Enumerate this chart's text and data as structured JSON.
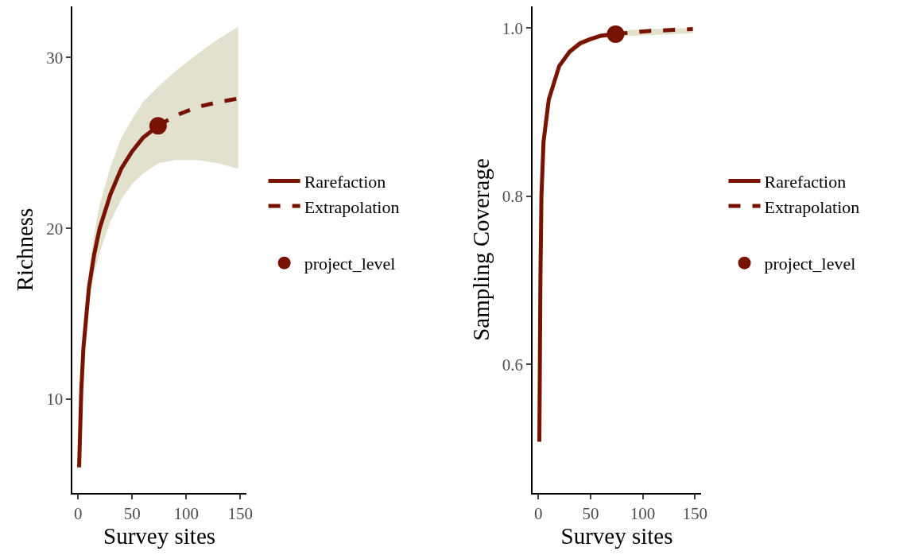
{
  "chart_data": [
    {
      "type": "line",
      "xlabel": "Survey sites",
      "ylabel": "Richness",
      "xlim": [
        -5,
        155.5
      ],
      "xticks": [
        0,
        50,
        100,
        150
      ],
      "ylim": [
        4.5,
        33
      ],
      "yticks": [
        10,
        20,
        30
      ],
      "legend": "right",
      "series": [
        {
          "name": "Rarefaction",
          "color": "#771300",
          "line_style": "solid",
          "x": [
            1,
            3,
            5,
            10,
            15,
            20,
            30,
            40,
            50,
            60,
            74
          ],
          "values": [
            6,
            10.5,
            13,
            16.5,
            18.5,
            20,
            22,
            23.5,
            24.5,
            25.3,
            26
          ],
          "lower": [
            6,
            10,
            12.5,
            15.5,
            17.3,
            18.6,
            20.4,
            21.7,
            22.6,
            23.2,
            23.8
          ],
          "upper": [
            6,
            11,
            13.5,
            17.5,
            19.7,
            21.4,
            23.6,
            25.3,
            26.4,
            27.4,
            28.3
          ]
        },
        {
          "name": "Extrapolation",
          "color": "#771300",
          "line_style": "dashed",
          "x": [
            74,
            90,
            110,
            130,
            148
          ],
          "values": [
            26,
            26.6,
            27.1,
            27.4,
            27.6
          ],
          "lower": [
            23.8,
            24,
            24,
            23.8,
            23.5
          ],
          "upper": [
            28.3,
            29.2,
            30.2,
            31.1,
            31.8
          ]
        },
        {
          "name": "project_level",
          "type": "scatter",
          "marker": "circle",
          "color": "#771300",
          "x": [
            74
          ],
          "values": [
            26
          ]
        }
      ]
    },
    {
      "type": "line",
      "xlabel": "Survey sites",
      "ylabel": "Sampling Coverage",
      "xlim": [
        -5.3,
        155.7
      ],
      "xticks": [
        0,
        50,
        100,
        150
      ],
      "ylim": [
        0.447,
        1.026
      ],
      "yticks": [
        0.6,
        0.8,
        {
          "value": 1,
          "label": "1.0"
        }
      ],
      "legend": "right",
      "series": [
        {
          "name": "Rarefaction",
          "color": "#771300",
          "line_style": "solid",
          "x": [
            1,
            2,
            3,
            5,
            10,
            20,
            30,
            40,
            50,
            60,
            74
          ],
          "values": [
            0.508,
            0.7,
            0.8,
            0.865,
            0.915,
            0.955,
            0.972,
            0.982,
            0.987,
            0.991,
            0.993
          ],
          "lower": [
            0.508,
            0.69,
            0.79,
            0.86,
            0.91,
            0.951,
            0.968,
            0.978,
            0.984,
            0.988,
            0.99
          ],
          "upper": [
            0.508,
            0.71,
            0.81,
            0.87,
            0.92,
            0.959,
            0.976,
            0.986,
            0.99,
            0.994,
            0.996
          ]
        },
        {
          "name": "Extrapolation",
          "color": "#771300",
          "line_style": "dashed",
          "x": [
            74,
            90,
            110,
            130,
            148
          ],
          "values": [
            0.993,
            0.995,
            0.997,
            0.998,
            0.999
          ],
          "lower": [
            0.99,
            0.991,
            0.992,
            0.993,
            0.994
          ],
          "upper": [
            0.996,
            0.998,
            0.999,
            1,
            1
          ]
        },
        {
          "name": "project_level",
          "type": "scatter",
          "marker": "circle",
          "color": "#771300",
          "x": [
            74
          ],
          "values": [
            0.993
          ]
        }
      ]
    }
  ]
}
